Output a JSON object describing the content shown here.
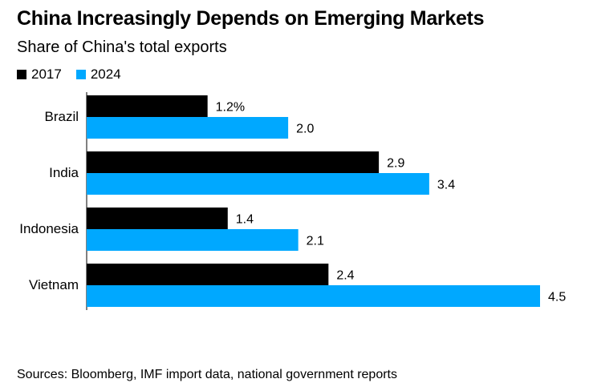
{
  "chart_data": {
    "type": "bar",
    "orientation": "horizontal",
    "title": "China Increasingly Depends on Emerging Markets",
    "subtitle": "Share of China's total exports",
    "categories": [
      "Brazil",
      "India",
      "Indonesia",
      "Vietnam"
    ],
    "series": [
      {
        "name": "2017",
        "color": "#000000",
        "values": [
          1.2,
          2.9,
          1.4,
          2.4
        ],
        "labels": [
          "1.2%",
          "2.9",
          "1.4",
          "2.4"
        ]
      },
      {
        "name": "2024",
        "color": "#00a8ff",
        "values": [
          2.0,
          3.4,
          2.1,
          4.5
        ],
        "labels": [
          "2.0",
          "3.4",
          "2.1",
          "4.5"
        ]
      }
    ],
    "xlim": [
      0,
      4.5
    ],
    "legend": "top-left",
    "grid": false,
    "source": "Sources: Bloomberg, IMF import data, national government reports"
  }
}
